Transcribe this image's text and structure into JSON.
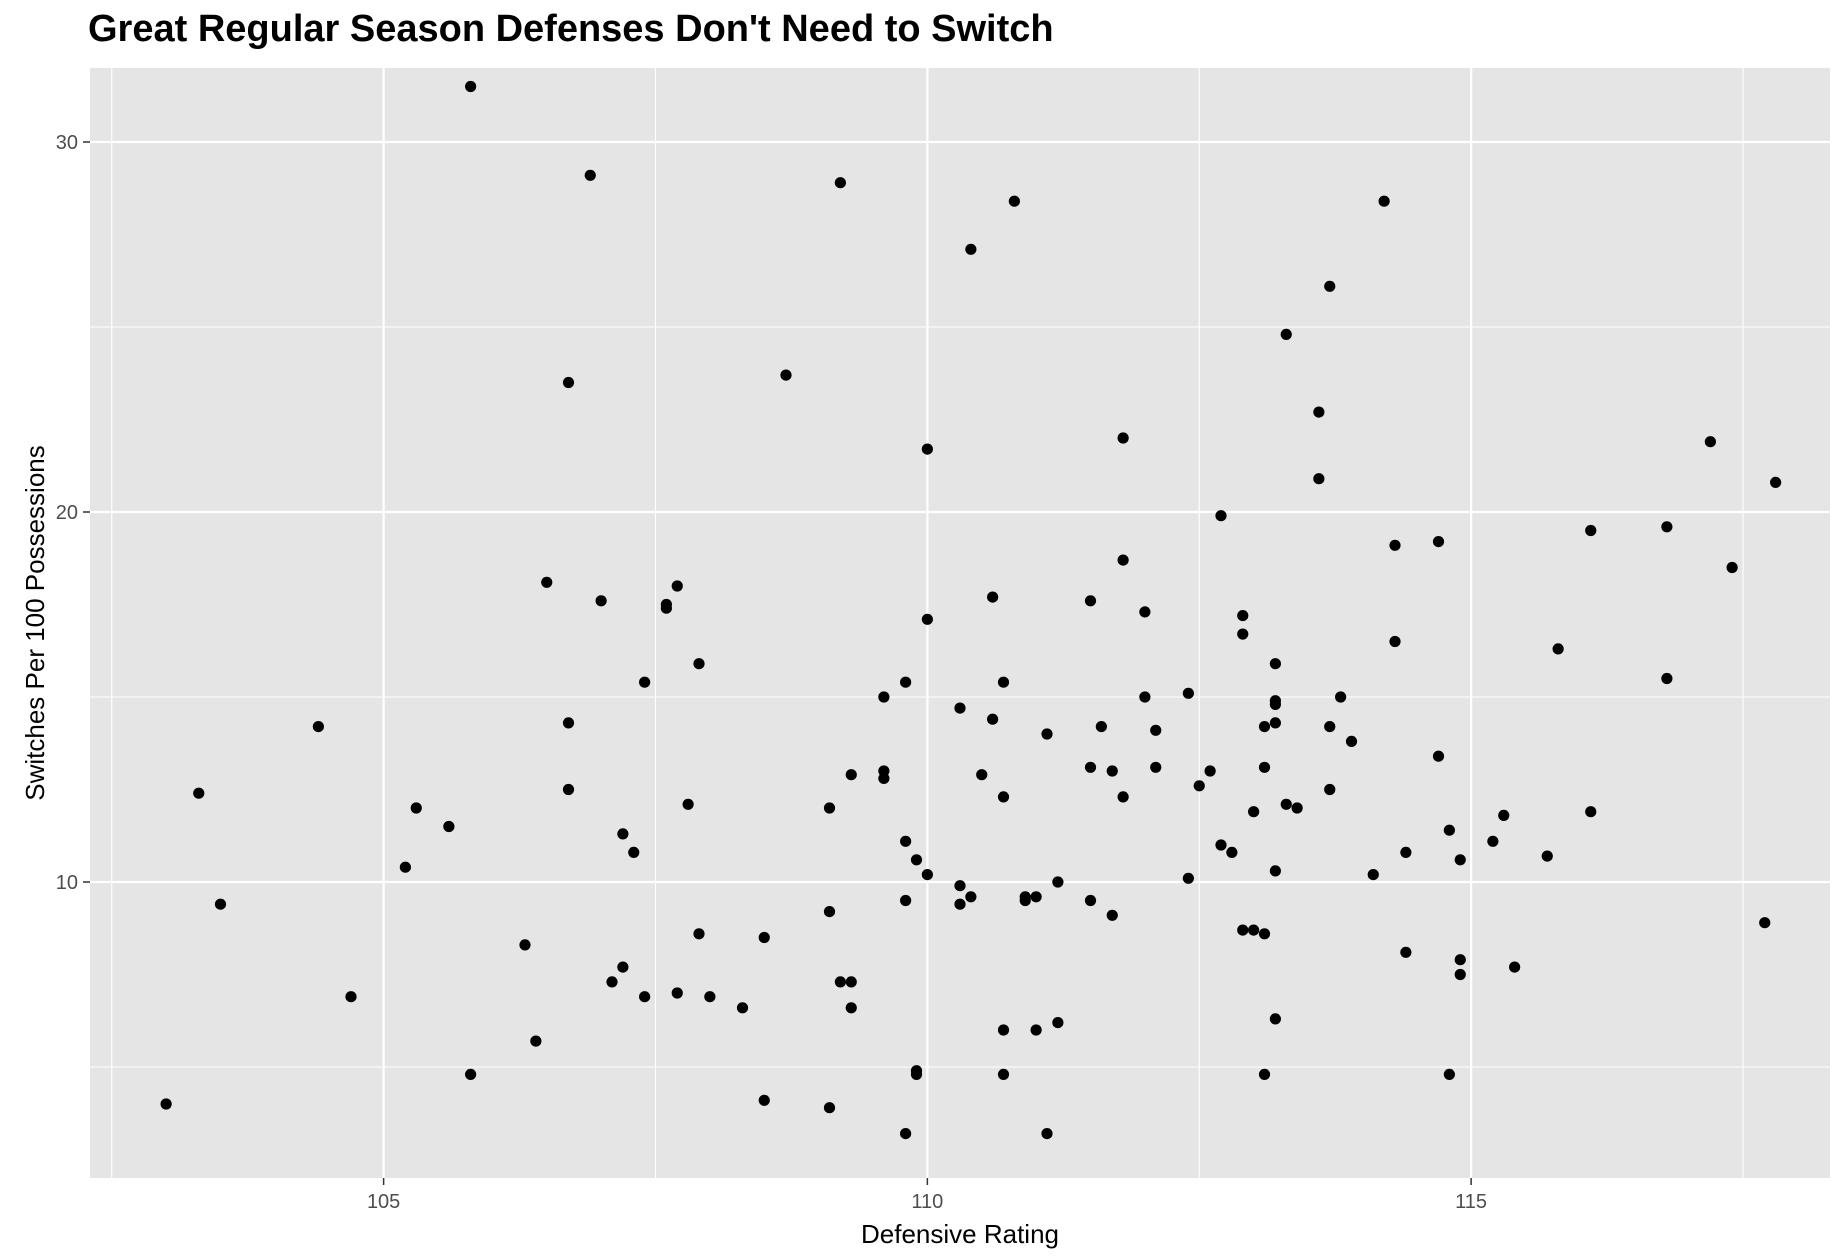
{
  "chart_data": {
    "type": "scatter",
    "title": "Great Regular Season Defenses Don't Need to Switch",
    "xlabel": "Defensive Rating",
    "ylabel": "Switches Per 100 Possessions",
    "xlim": [
      102.3,
      118.3
    ],
    "ylim": [
      2.0,
      32.0
    ],
    "x_ticks": [
      105,
      110,
      115
    ],
    "y_ticks": [
      10,
      20,
      30
    ],
    "grid": true,
    "legend": "none",
    "colors": {
      "panel": "#e5e5e5",
      "grid": "#ffffff",
      "point": "#000000",
      "tick_text": "#4d4d4d"
    },
    "points": [
      {
        "x": 103.0,
        "y": 4.0
      },
      {
        "x": 103.3,
        "y": 12.4
      },
      {
        "x": 103.5,
        "y": 9.4
      },
      {
        "x": 104.4,
        "y": 14.2
      },
      {
        "x": 104.7,
        "y": 6.9
      },
      {
        "x": 105.2,
        "y": 10.4
      },
      {
        "x": 105.3,
        "y": 12.0
      },
      {
        "x": 105.6,
        "y": 11.5
      },
      {
        "x": 105.8,
        "y": 31.5
      },
      {
        "x": 105.8,
        "y": 4.8
      },
      {
        "x": 106.3,
        "y": 8.3
      },
      {
        "x": 106.4,
        "y": 5.7
      },
      {
        "x": 106.5,
        "y": 18.1
      },
      {
        "x": 106.7,
        "y": 23.5
      },
      {
        "x": 106.7,
        "y": 14.3
      },
      {
        "x": 106.7,
        "y": 12.5
      },
      {
        "x": 106.9,
        "y": 29.1
      },
      {
        "x": 107.0,
        "y": 17.6
      },
      {
        "x": 107.1,
        "y": 7.3
      },
      {
        "x": 107.2,
        "y": 11.3
      },
      {
        "x": 107.2,
        "y": 7.7
      },
      {
        "x": 107.3,
        "y": 10.8
      },
      {
        "x": 107.4,
        "y": 15.4
      },
      {
        "x": 107.4,
        "y": 6.9
      },
      {
        "x": 107.6,
        "y": 17.5
      },
      {
        "x": 107.6,
        "y": 17.4
      },
      {
        "x": 107.7,
        "y": 18.0
      },
      {
        "x": 107.7,
        "y": 7.0
      },
      {
        "x": 107.8,
        "y": 12.1
      },
      {
        "x": 107.9,
        "y": 15.9
      },
      {
        "x": 107.9,
        "y": 8.6
      },
      {
        "x": 108.0,
        "y": 6.9
      },
      {
        "x": 108.3,
        "y": 6.6
      },
      {
        "x": 108.5,
        "y": 8.5
      },
      {
        "x": 108.5,
        "y": 4.1
      },
      {
        "x": 108.7,
        "y": 23.7
      },
      {
        "x": 109.1,
        "y": 12.0
      },
      {
        "x": 109.1,
        "y": 9.2
      },
      {
        "x": 109.1,
        "y": 3.9
      },
      {
        "x": 109.2,
        "y": 28.9
      },
      {
        "x": 109.2,
        "y": 7.3
      },
      {
        "x": 109.3,
        "y": 12.9
      },
      {
        "x": 109.3,
        "y": 7.3
      },
      {
        "x": 109.3,
        "y": 6.6
      },
      {
        "x": 109.6,
        "y": 15.0
      },
      {
        "x": 109.6,
        "y": 13.0
      },
      {
        "x": 109.6,
        "y": 12.8
      },
      {
        "x": 109.8,
        "y": 15.4
      },
      {
        "x": 109.8,
        "y": 11.1
      },
      {
        "x": 109.8,
        "y": 9.5
      },
      {
        "x": 109.8,
        "y": 3.2
      },
      {
        "x": 109.9,
        "y": 10.6
      },
      {
        "x": 109.9,
        "y": 4.9
      },
      {
        "x": 109.9,
        "y": 4.8
      },
      {
        "x": 110.0,
        "y": 21.7
      },
      {
        "x": 110.0,
        "y": 17.1
      },
      {
        "x": 110.0,
        "y": 10.2
      },
      {
        "x": 110.3,
        "y": 14.7
      },
      {
        "x": 110.3,
        "y": 9.9
      },
      {
        "x": 110.3,
        "y": 9.4
      },
      {
        "x": 110.4,
        "y": 27.1
      },
      {
        "x": 110.4,
        "y": 9.6
      },
      {
        "x": 110.5,
        "y": 12.9
      },
      {
        "x": 110.6,
        "y": 17.7
      },
      {
        "x": 110.6,
        "y": 14.4
      },
      {
        "x": 110.7,
        "y": 15.4
      },
      {
        "x": 110.7,
        "y": 12.3
      },
      {
        "x": 110.7,
        "y": 6.0
      },
      {
        "x": 110.7,
        "y": 4.8
      },
      {
        "x": 110.8,
        "y": 28.4
      },
      {
        "x": 110.9,
        "y": 9.6
      },
      {
        "x": 110.9,
        "y": 9.5
      },
      {
        "x": 111.0,
        "y": 9.6
      },
      {
        "x": 111.0,
        "y": 6.0
      },
      {
        "x": 111.1,
        "y": 14.0
      },
      {
        "x": 111.1,
        "y": 3.2
      },
      {
        "x": 111.2,
        "y": 10.0
      },
      {
        "x": 111.2,
        "y": 6.2
      },
      {
        "x": 111.5,
        "y": 17.6
      },
      {
        "x": 111.5,
        "y": 13.1
      },
      {
        "x": 111.5,
        "y": 9.5
      },
      {
        "x": 111.6,
        "y": 14.2
      },
      {
        "x": 111.7,
        "y": 13.0
      },
      {
        "x": 111.7,
        "y": 9.1
      },
      {
        "x": 111.8,
        "y": 22.0
      },
      {
        "x": 111.8,
        "y": 18.7
      },
      {
        "x": 111.8,
        "y": 12.3
      },
      {
        "x": 112.0,
        "y": 17.3
      },
      {
        "x": 112.0,
        "y": 15.0
      },
      {
        "x": 112.1,
        "y": 14.1
      },
      {
        "x": 112.1,
        "y": 13.1
      },
      {
        "x": 112.4,
        "y": 15.1
      },
      {
        "x": 112.4,
        "y": 10.1
      },
      {
        "x": 112.5,
        "y": 12.6
      },
      {
        "x": 112.6,
        "y": 13.0
      },
      {
        "x": 112.7,
        "y": 19.9
      },
      {
        "x": 112.7,
        "y": 11.0
      },
      {
        "x": 112.8,
        "y": 10.8
      },
      {
        "x": 112.9,
        "y": 17.2
      },
      {
        "x": 112.9,
        "y": 16.7
      },
      {
        "x": 112.9,
        "y": 8.7
      },
      {
        "x": 113.0,
        "y": 11.9
      },
      {
        "x": 113.0,
        "y": 8.7
      },
      {
        "x": 113.1,
        "y": 14.2
      },
      {
        "x": 113.1,
        "y": 13.1
      },
      {
        "x": 113.1,
        "y": 8.6
      },
      {
        "x": 113.1,
        "y": 4.8
      },
      {
        "x": 113.2,
        "y": 15.9
      },
      {
        "x": 113.2,
        "y": 14.9
      },
      {
        "x": 113.2,
        "y": 14.8
      },
      {
        "x": 113.2,
        "y": 14.3
      },
      {
        "x": 113.2,
        "y": 10.3
      },
      {
        "x": 113.2,
        "y": 6.3
      },
      {
        "x": 113.3,
        "y": 24.8
      },
      {
        "x": 113.3,
        "y": 12.1
      },
      {
        "x": 113.4,
        "y": 12.0
      },
      {
        "x": 113.6,
        "y": 22.7
      },
      {
        "x": 113.6,
        "y": 20.9
      },
      {
        "x": 113.7,
        "y": 26.1
      },
      {
        "x": 113.7,
        "y": 14.2
      },
      {
        "x": 113.7,
        "y": 12.5
      },
      {
        "x": 113.8,
        "y": 15.0
      },
      {
        "x": 113.9,
        "y": 13.8
      },
      {
        "x": 114.1,
        "y": 10.2
      },
      {
        "x": 114.2,
        "y": 28.4
      },
      {
        "x": 114.3,
        "y": 19.1
      },
      {
        "x": 114.3,
        "y": 16.5
      },
      {
        "x": 114.4,
        "y": 10.8
      },
      {
        "x": 114.4,
        "y": 8.1
      },
      {
        "x": 114.7,
        "y": 19.2
      },
      {
        "x": 114.7,
        "y": 13.4
      },
      {
        "x": 114.8,
        "y": 11.4
      },
      {
        "x": 114.8,
        "y": 4.8
      },
      {
        "x": 114.9,
        "y": 10.6
      },
      {
        "x": 114.9,
        "y": 7.9
      },
      {
        "x": 114.9,
        "y": 7.5
      },
      {
        "x": 115.2,
        "y": 11.1
      },
      {
        "x": 115.3,
        "y": 11.8
      },
      {
        "x": 115.4,
        "y": 7.7
      },
      {
        "x": 115.7,
        "y": 10.7
      },
      {
        "x": 115.8,
        "y": 16.3
      },
      {
        "x": 116.1,
        "y": 19.5
      },
      {
        "x": 116.1,
        "y": 11.9
      },
      {
        "x": 116.8,
        "y": 19.6
      },
      {
        "x": 116.8,
        "y": 15.5
      },
      {
        "x": 117.2,
        "y": 21.9
      },
      {
        "x": 117.4,
        "y": 18.5
      },
      {
        "x": 117.7,
        "y": 8.9
      },
      {
        "x": 117.8,
        "y": 20.8
      }
    ]
  }
}
